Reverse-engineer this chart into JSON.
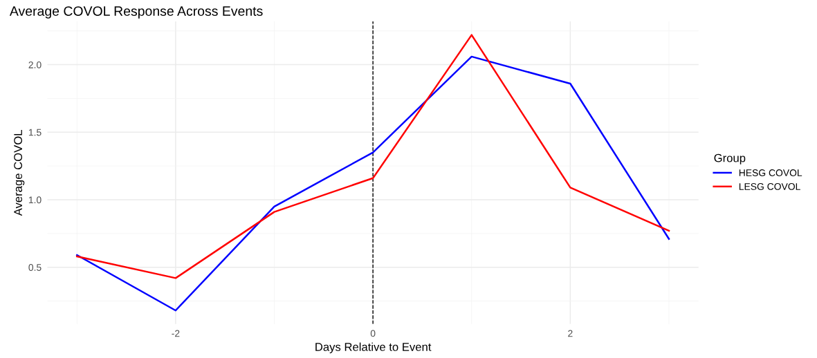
{
  "chart_data": {
    "type": "line",
    "title": "Average COVOL Response Across Events",
    "xlabel": "Days Relative to Event",
    "ylabel": "Average COVOL",
    "legend_title": "Group",
    "x": [
      -3,
      -2,
      -1,
      0,
      1,
      2,
      3
    ],
    "series": [
      {
        "name": "HESG COVOL",
        "color": "#0000ff",
        "values": [
          0.59,
          0.18,
          0.95,
          1.35,
          2.06,
          1.86,
          0.71
        ]
      },
      {
        "name": "LESG COVOL",
        "color": "#ff0000",
        "values": [
          0.58,
          0.42,
          0.91,
          1.16,
          2.22,
          1.09,
          0.77
        ]
      }
    ],
    "xlim": [
      -3.3,
      3.3
    ],
    "ylim": [
      0.08,
      2.32
    ],
    "xticks": [
      -2,
      0,
      2
    ],
    "yticks": [
      0.5,
      {
        "value": 1,
        "label": "1.0"
      },
      1.5,
      {
        "value": 2,
        "label": "2.0"
      }
    ],
    "ref_lines": [
      {
        "axis": "x",
        "value": 0,
        "color": "#000000",
        "line_style": "dashed"
      }
    ],
    "grid": true,
    "legend": "right",
    "marker": "none",
    "line_style": "solid"
  }
}
